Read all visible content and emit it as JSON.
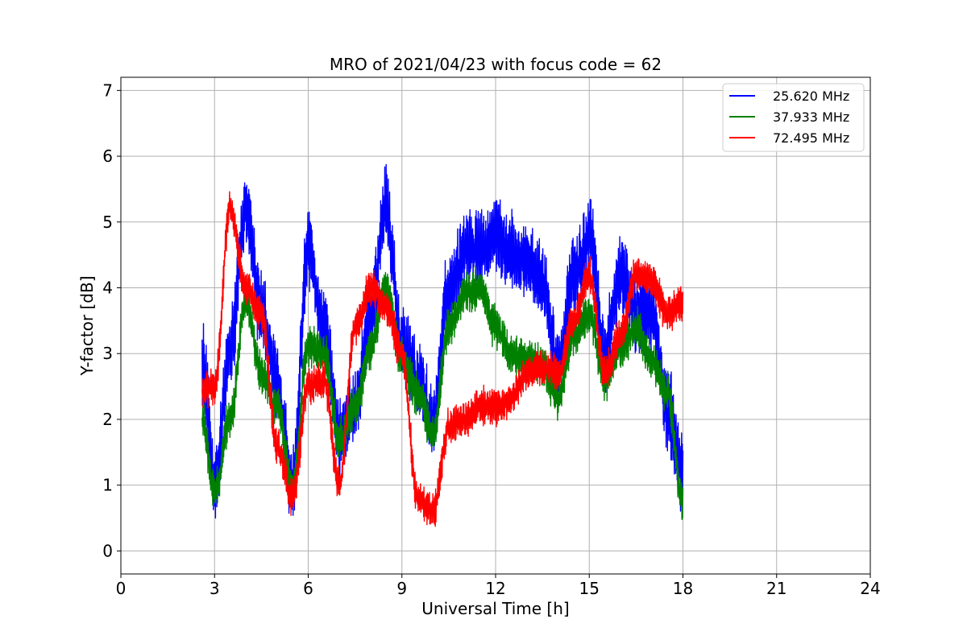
{
  "chart_data": {
    "type": "line",
    "title": "MRO of 2021/04/23 with focus code = 62",
    "xlabel": "Universal Time [h]",
    "ylabel": "Y-factor [dB]",
    "xlim": [
      0,
      24
    ],
    "ylim": [
      -0.35,
      7.2
    ],
    "xticks": [
      0,
      3,
      6,
      9,
      12,
      15,
      18,
      21,
      24
    ],
    "yticks": [
      0,
      1,
      2,
      3,
      4,
      5,
      6,
      7
    ],
    "grid": true,
    "legend_position": "top-right",
    "x": [
      2.6,
      3.0,
      3.5,
      4.0,
      4.5,
      5.0,
      5.5,
      6.0,
      6.5,
      7.0,
      7.5,
      8.0,
      8.5,
      9.0,
      9.5,
      10.0,
      10.5,
      11.0,
      11.5,
      12.0,
      12.5,
      13.0,
      13.5,
      14.0,
      14.5,
      15.0,
      15.5,
      16.0,
      16.5,
      17.0,
      17.5,
      18.0
    ],
    "series": [
      {
        "name": "25.620 MHz",
        "color": "#0000ff",
        "values": [
          2.9,
          1.1,
          3.0,
          5.2,
          3.6,
          2.6,
          1.0,
          4.6,
          3.4,
          1.7,
          2.2,
          3.6,
          5.2,
          3.1,
          2.6,
          2.0,
          4.0,
          4.5,
          4.6,
          4.8,
          4.5,
          4.4,
          4.1,
          2.8,
          4.2,
          4.8,
          3.0,
          4.2,
          3.6,
          3.6,
          2.2,
          1.2
        ],
        "spread": 0.55
      },
      {
        "name": "37.933 MHz",
        "color": "#008000",
        "values": [
          2.0,
          0.9,
          2.0,
          3.8,
          2.7,
          2.2,
          1.0,
          3.1,
          3.0,
          1.7,
          2.2,
          3.1,
          4.0,
          2.9,
          2.4,
          1.8,
          3.4,
          3.9,
          4.0,
          3.4,
          3.0,
          2.9,
          2.8,
          2.3,
          3.3,
          3.6,
          2.6,
          3.1,
          3.4,
          2.9,
          2.4,
          0.7
        ],
        "spread": 0.28
      },
      {
        "name": "72.495 MHz",
        "color": "#ff0000",
        "values": [
          2.4,
          2.5,
          5.2,
          4.0,
          3.6,
          1.6,
          0.8,
          2.5,
          2.6,
          1.0,
          3.4,
          4.0,
          3.7,
          3.0,
          0.8,
          0.6,
          1.9,
          2.0,
          2.2,
          2.2,
          2.3,
          2.7,
          2.8,
          2.7,
          3.5,
          4.2,
          2.7,
          3.3,
          4.2,
          4.1,
          3.6,
          3.8
        ],
        "spread": 0.25
      }
    ]
  }
}
